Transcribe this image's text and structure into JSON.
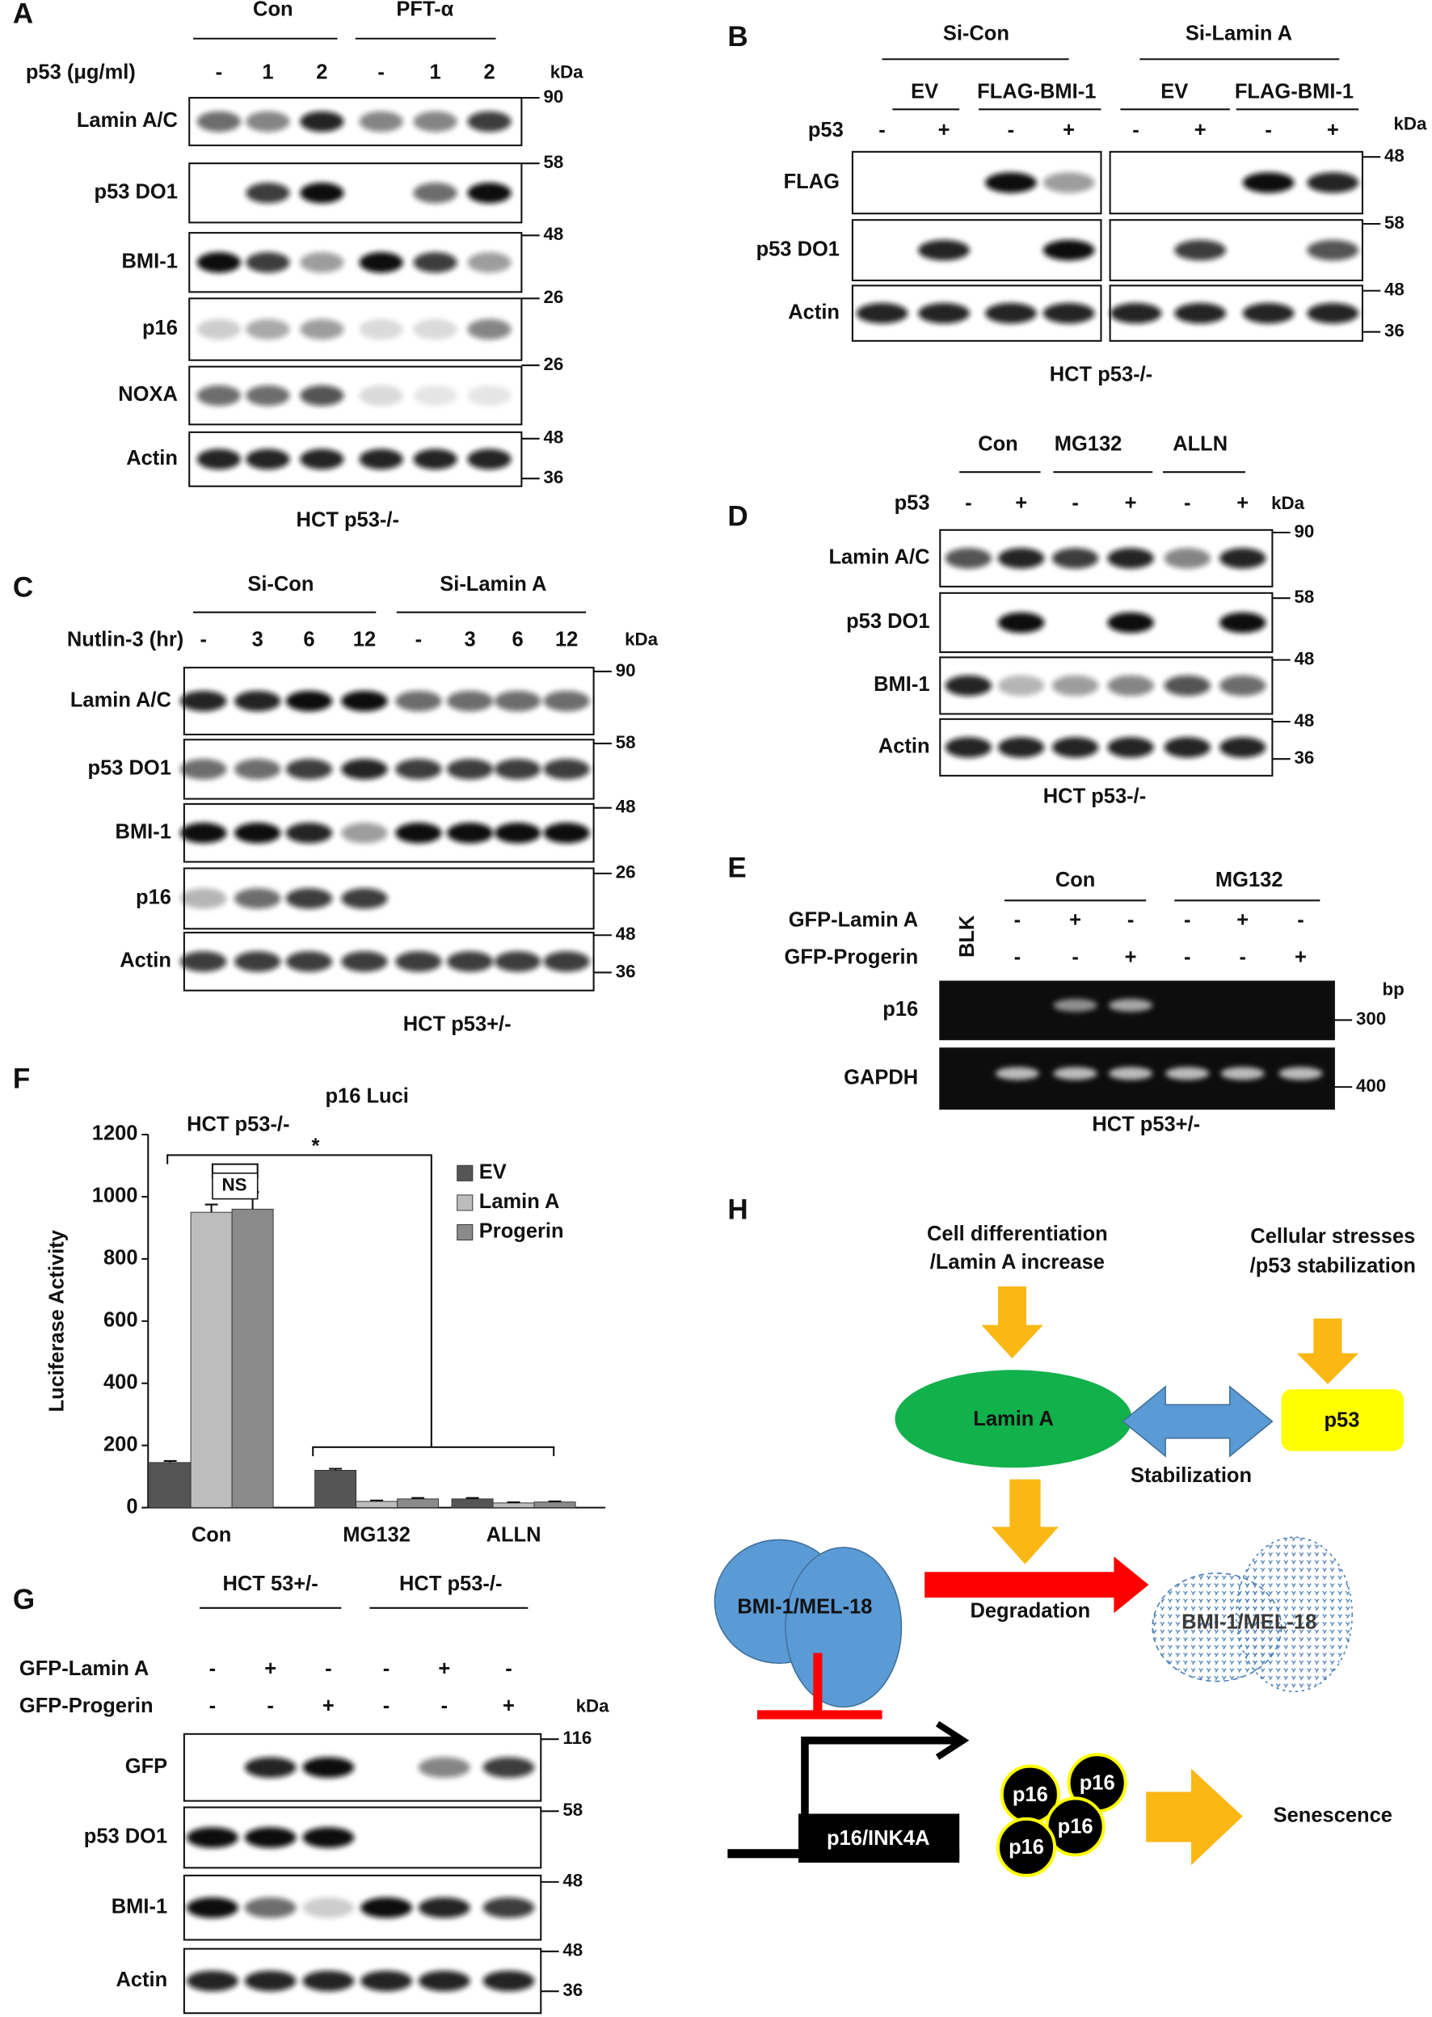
{
  "panels": {
    "A": {
      "label": "A",
      "groups": [
        "Con",
        "PFT-α"
      ],
      "conditions": [
        {
          "name": "p53 (μg/ml)",
          "lanes": [
            "-",
            "1",
            "2",
            "-",
            "1",
            "2"
          ]
        }
      ],
      "unit": "kDa",
      "rows": [
        {
          "name": "Lamin A/C",
          "markers": [
            "90"
          ]
        },
        {
          "name": "p53 DO1",
          "markers": [
            "58"
          ]
        },
        {
          "name": "BMI-1",
          "markers": [
            "48"
          ]
        },
        {
          "name": "p16",
          "markers": [
            "26"
          ]
        },
        {
          "name": "NOXA",
          "markers": [
            "26"
          ]
        },
        {
          "name": "Actin",
          "markers": [
            "48",
            "36"
          ]
        }
      ],
      "caption": "HCT p53-/-"
    },
    "B": {
      "label": "B",
      "groups": [
        "Si-Con",
        "Si-Lamin A"
      ],
      "subgroups": [
        "EV",
        "FLAG-BMI-1",
        "EV",
        "FLAG-BMI-1"
      ],
      "conditions": [
        {
          "name": "p53",
          "lanes": [
            "-",
            "+",
            "-",
            "+",
            "-",
            "+",
            "-",
            "+"
          ]
        }
      ],
      "unit": "kDa",
      "rows": [
        {
          "name": "FLAG",
          "markers": [
            "48"
          ]
        },
        {
          "name": "p53 DO1",
          "markers": [
            "58"
          ]
        },
        {
          "name": "Actin",
          "markers": [
            "48",
            "36"
          ]
        }
      ],
      "caption": "HCT p53-/-"
    },
    "C": {
      "label": "C",
      "groups": [
        "Si-Con",
        "Si-Lamin A"
      ],
      "conditions": [
        {
          "name": "Nutlin-3 (hr)",
          "lanes": [
            "-",
            "3",
            "6",
            "12",
            "-",
            "3",
            "6",
            "12"
          ]
        }
      ],
      "unit": "kDa",
      "rows": [
        {
          "name": "Lamin A/C",
          "markers": [
            "90"
          ]
        },
        {
          "name": "p53 DO1",
          "markers": [
            "58"
          ]
        },
        {
          "name": "BMI-1",
          "markers": [
            "48"
          ]
        },
        {
          "name": "p16",
          "markers": [
            "26"
          ]
        },
        {
          "name": "Actin",
          "markers": [
            "48",
            "36"
          ]
        }
      ],
      "caption": "HCT p53+/-"
    },
    "D": {
      "label": "D",
      "groups": [
        "Con",
        "MG132",
        "ALLN"
      ],
      "conditions": [
        {
          "name": "p53",
          "lanes": [
            "-",
            "+",
            "-",
            "+",
            "-",
            "+"
          ]
        }
      ],
      "unit": "kDa",
      "rows": [
        {
          "name": "Lamin A/C",
          "markers": [
            "90"
          ]
        },
        {
          "name": "p53 DO1",
          "markers": [
            "58"
          ]
        },
        {
          "name": "BMI-1",
          "markers": [
            "48"
          ]
        },
        {
          "name": "Actin",
          "markers": [
            "48",
            "36"
          ]
        }
      ],
      "caption": "HCT p53-/-"
    },
    "E": {
      "label": "E",
      "groups": [
        "Con",
        "MG132"
      ],
      "blank_lane": "BLK",
      "conditions": [
        {
          "name": "GFP-Lamin A",
          "lanes": [
            "-",
            "+",
            "-",
            "-",
            "+",
            "-"
          ]
        },
        {
          "name": "GFP-Progerin",
          "lanes": [
            "-",
            "-",
            "+",
            "-",
            "-",
            "+"
          ]
        }
      ],
      "unit": "bp",
      "rows": [
        {
          "name": "p16",
          "markers": [
            "300"
          ]
        },
        {
          "name": "GAPDH",
          "markers": [
            "400"
          ]
        }
      ],
      "caption": "HCT p53+/-"
    },
    "F": {
      "label": "F"
    },
    "G": {
      "label": "G",
      "groups": [
        "HCT 53+/-",
        "HCT p53-/-"
      ],
      "conditions": [
        {
          "name": "GFP-Lamin A",
          "lanes": [
            "-",
            "+",
            "-",
            "-",
            "+",
            "-"
          ]
        },
        {
          "name": "GFP-Progerin",
          "lanes": [
            "-",
            "-",
            "+",
            "-",
            "-",
            "+"
          ]
        }
      ],
      "unit": "kDa",
      "rows": [
        {
          "name": "GFP",
          "markers": [
            "116"
          ]
        },
        {
          "name": "p53 DO1",
          "markers": [
            "58"
          ]
        },
        {
          "name": "BMI-1",
          "markers": [
            "48"
          ]
        },
        {
          "name": "Actin",
          "markers": [
            "48",
            "36"
          ]
        }
      ]
    },
    "H": {
      "label": "H",
      "inputs": [
        [
          "Cell differentiation",
          "/Lamin A increase"
        ],
        [
          "Cellular stresses",
          "/p53 stabilization"
        ]
      ],
      "nodes": {
        "lamin": "Lamin A",
        "p53": "p53",
        "bmi": "BMI-1/MEL-18",
        "bmi_degraded": "BMI-1/MEL-18",
        "promoter": "p16/INK4A",
        "protein": "p16",
        "outcome": "Senescence"
      },
      "edges": {
        "stabilization": "Stabilization",
        "degradation": "Degradation"
      }
    }
  },
  "chart_data": {
    "type": "bar",
    "title": "p16 Luci",
    "y_label": "Luciferase Activity",
    "categories": [
      "Con",
      "MG132",
      "ALLN"
    ],
    "series": [
      {
        "name": "EV",
        "color": "#555555",
        "values": [
          145,
          120,
          28
        ],
        "errors": [
          5,
          5,
          3
        ]
      },
      {
        "name": "Lamin A",
        "color": "#bdbdbd",
        "values": [
          950,
          20,
          15
        ],
        "errors": [
          25,
          3,
          2
        ]
      },
      {
        "name": "Progerin",
        "color": "#8a8a8a",
        "values": [
          960,
          28,
          18
        ],
        "errors": [
          55,
          3,
          2
        ]
      }
    ],
    "ylim": [
      0,
      1200
    ],
    "yticks": [
      0,
      200,
      400,
      600,
      800,
      1000,
      1200
    ],
    "grid": false,
    "legend": "right",
    "annotations": [
      "HCT p53-/-",
      "NS",
      "*"
    ]
  }
}
